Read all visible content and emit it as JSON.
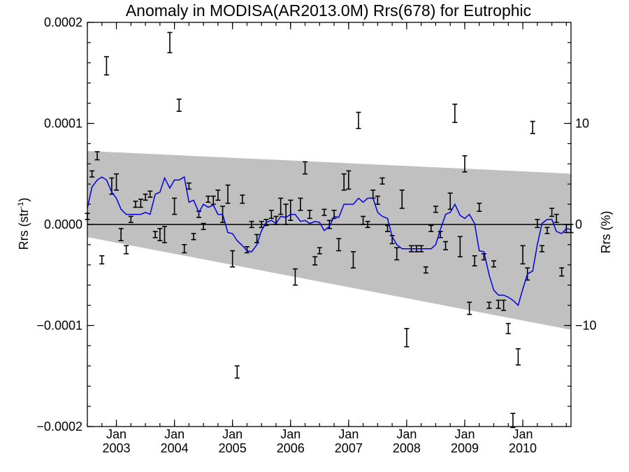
{
  "chart_data": {
    "type": "line",
    "title": "Anomaly in MODISA(AR2013.0M) Rrs(678) for Eutrophic",
    "ylabel_left": {
      "main": "Rrs (str",
      "sup": "-1",
      "tail": ")"
    },
    "ylabel_right": "Rrs (%)",
    "ylim": [
      -0.0002,
      0.0002
    ],
    "y2lim": [
      -20,
      20
    ],
    "xlim": [
      2002.5,
      2010.83
    ],
    "grid": false,
    "left_ticks": [
      {
        "value": 0.0002,
        "label": "0.0002"
      },
      {
        "value": 0.0001,
        "label": "0.0001"
      },
      {
        "value": 0.0,
        "label": "0.0000"
      },
      {
        "value": -0.0001,
        "label": "−0.0001"
      },
      {
        "value": -0.0002,
        "label": "−0.0002"
      }
    ],
    "right_ticks": [
      {
        "value": 10,
        "label": "10"
      },
      {
        "value": 0,
        "label": "0"
      },
      {
        "value": -10,
        "label": "−10"
      }
    ],
    "x_ticks": [
      {
        "value": 2003.0,
        "month": "Jan",
        "year": "2003"
      },
      {
        "value": 2004.0,
        "month": "Jan",
        "year": "2004"
      },
      {
        "value": 2005.0,
        "month": "Jan",
        "year": "2005"
      },
      {
        "value": 2006.0,
        "month": "Jan",
        "year": "2006"
      },
      {
        "value": 2007.0,
        "month": "Jan",
        "year": "2007"
      },
      {
        "value": 2008.0,
        "month": "Jan",
        "year": "2008"
      },
      {
        "value": 2009.0,
        "month": "Jan",
        "year": "2009"
      },
      {
        "value": 2010.0,
        "month": "Jan",
        "year": "2010"
      }
    ],
    "envelope": {
      "upper": [
        [
          2002.5,
          7.27e-05
        ],
        [
          2010.83,
          5.03e-05
        ]
      ],
      "lower": [
        [
          2002.5,
          -1.25e-05
        ],
        [
          2010.83,
          -0.0001042
        ]
      ],
      "color": "#c0c0c0"
    },
    "zero_line": 0,
    "smoothed_color": "#0000dd",
    "smoothed": [
      [
        2002.5,
        1.6e-05
      ],
      [
        2002.58,
        3.7e-05
      ],
      [
        2002.67,
        4.4e-05
      ],
      [
        2002.75,
        4.7e-05
      ],
      [
        2002.83,
        4.4e-05
      ],
      [
        2002.92,
        3.2e-05
      ],
      [
        2003.0,
        2.6e-05
      ],
      [
        2003.08,
        1.5e-05
      ],
      [
        2003.17,
        1e-05
      ],
      [
        2003.25,
        1e-05
      ],
      [
        2003.33,
        1e-05
      ],
      [
        2003.42,
        1e-05
      ],
      [
        2003.5,
        1.2e-05
      ],
      [
        2003.58,
        1e-05
      ],
      [
        2003.67,
        3e-05
      ],
      [
        2003.75,
        3.2e-05
      ],
      [
        2003.83,
        4.6e-05
      ],
      [
        2003.92,
        3.6e-05
      ],
      [
        2004.0,
        4.4e-05
      ],
      [
        2004.08,
        4.4e-05
      ],
      [
        2004.17,
        4.7e-05
      ],
      [
        2004.25,
        2.2e-05
      ],
      [
        2004.33,
        2.4e-05
      ],
      [
        2004.42,
        1.2e-05
      ],
      [
        2004.5,
        2e-05
      ],
      [
        2004.58,
        1.7e-05
      ],
      [
        2004.67,
        1.9e-05
      ],
      [
        2004.75,
        1e-05
      ],
      [
        2004.83,
        1e-05
      ],
      [
        2004.92,
        -8e-06
      ],
      [
        2005.0,
        -9e-06
      ],
      [
        2005.08,
        -1.6e-05
      ],
      [
        2005.17,
        -2.1e-05
      ],
      [
        2005.25,
        -2.6e-05
      ],
      [
        2005.33,
        -2.7e-05
      ],
      [
        2005.42,
        -2e-05
      ],
      [
        2005.5,
        -6e-06
      ],
      [
        2005.58,
        2e-06
      ],
      [
        2005.67,
        4e-06
      ],
      [
        2005.75,
        1e-06
      ],
      [
        2005.83,
        8e-06
      ],
      [
        2005.92,
        7e-06
      ],
      [
        2006.0,
        1e-05
      ],
      [
        2006.08,
        1e-05
      ],
      [
        2006.17,
        3e-06
      ],
      [
        2006.25,
        4e-06
      ],
      [
        2006.33,
        1e-06
      ],
      [
        2006.42,
        3e-06
      ],
      [
        2006.5,
        2e-06
      ],
      [
        2006.58,
        -6e-06
      ],
      [
        2006.67,
        -2e-06
      ],
      [
        2006.75,
        8e-06
      ],
      [
        2006.83,
        7e-06
      ],
      [
        2006.92,
        2e-05
      ],
      [
        2007.0,
        2e-05
      ],
      [
        2007.08,
        2e-05
      ],
      [
        2007.17,
        2.6e-05
      ],
      [
        2007.25,
        2.2e-05
      ],
      [
        2007.33,
        2.6e-05
      ],
      [
        2007.42,
        2.6e-05
      ],
      [
        2007.5,
        1.2e-05
      ],
      [
        2007.58,
        8e-06
      ],
      [
        2007.67,
        6e-06
      ],
      [
        2007.75,
        -1.2e-05
      ],
      [
        2007.83,
        -2e-05
      ],
      [
        2007.92,
        -2.4e-05
      ],
      [
        2008.0,
        -2.4e-05
      ],
      [
        2008.08,
        -2.4e-05
      ],
      [
        2008.17,
        -2.4e-05
      ],
      [
        2008.25,
        -2.4e-05
      ],
      [
        2008.33,
        -2.4e-05
      ],
      [
        2008.42,
        -2.4e-05
      ],
      [
        2008.5,
        -2e-05
      ],
      [
        2008.58,
        -5e-06
      ],
      [
        2008.67,
        1e-05
      ],
      [
        2008.75,
        1.2e-05
      ],
      [
        2008.83,
        2e-05
      ],
      [
        2008.92,
        9e-06
      ],
      [
        2009.0,
        6e-06
      ],
      [
        2009.08,
        1e-05
      ],
      [
        2009.17,
        1e-06
      ],
      [
        2009.25,
        -2.6e-05
      ],
      [
        2009.33,
        -2.7e-05
      ],
      [
        2009.42,
        -5e-05
      ],
      [
        2009.5,
        -6.5e-05
      ],
      [
        2009.58,
        -7e-05
      ],
      [
        2009.67,
        -7e-05
      ],
      [
        2009.75,
        -7.2e-05
      ],
      [
        2009.83,
        -7.5e-05
      ],
      [
        2009.92,
        -8e-05
      ],
      [
        2010.0,
        -6.4e-05
      ],
      [
        2010.08,
        -4.9e-05
      ],
      [
        2010.17,
        -4.6e-05
      ],
      [
        2010.25,
        -2e-05
      ],
      [
        2010.33,
        1e-06
      ],
      [
        2010.42,
        5e-06
      ],
      [
        2010.5,
        5e-06
      ],
      [
        2010.58,
        -7e-06
      ],
      [
        2010.67,
        -9e-06
      ],
      [
        2010.75,
        -4e-06
      ],
      [
        2010.83,
        -5e-06
      ]
    ],
    "anomalies": [
      [
        2002.5,
        8e-06,
        3e-06
      ],
      [
        2002.58,
        5e-05,
        3e-06
      ],
      [
        2002.67,
        6.8e-05,
        4e-06
      ],
      [
        2002.75,
        -3.5e-05,
        4e-06
      ],
      [
        2002.83,
        0.000157,
        9e-06
      ],
      [
        2002.92,
        3.8e-05,
        8e-06
      ],
      [
        2003.0,
        4.2e-05,
        8e-06
      ],
      [
        2003.08,
        -1e-05,
        6e-06
      ],
      [
        2003.17,
        -2.5e-05,
        4e-06
      ],
      [
        2003.25,
        5e-06,
        3e-06
      ],
      [
        2003.33,
        2e-05,
        3e-06
      ],
      [
        2003.42,
        2.1e-05,
        4e-06
      ],
      [
        2003.5,
        2.7e-05,
        3e-06
      ],
      [
        2003.58,
        3e-05,
        3e-06
      ],
      [
        2003.67,
        -1e-05,
        3e-06
      ],
      [
        2003.75,
        -1e-05,
        6e-06
      ],
      [
        2003.83,
        -1e-05,
        8e-06
      ],
      [
        2003.92,
        0.00018,
        1e-05
      ],
      [
        2004.0,
        1.8e-05,
        8e-06
      ],
      [
        2004.08,
        0.000118,
        6e-06
      ],
      [
        2004.17,
        -2.4e-05,
        4e-06
      ],
      [
        2004.25,
        3.8e-05,
        3e-06
      ],
      [
        2004.33,
        -1.2e-05,
        3e-06
      ],
      [
        2004.42,
        1e-05,
        3e-06
      ],
      [
        2004.5,
        -2e-06,
        3e-06
      ],
      [
        2004.58,
        2.5e-05,
        3e-06
      ],
      [
        2004.67,
        2.4e-05,
        4e-06
      ],
      [
        2004.75,
        2.9e-05,
        5e-06
      ],
      [
        2004.83,
        1e-05,
        8e-06
      ],
      [
        2004.92,
        3e-05,
        9e-06
      ],
      [
        2005.0,
        -3.4e-05,
        8e-06
      ],
      [
        2005.08,
        -0.000146,
        6e-06
      ],
      [
        2005.17,
        2.5e-05,
        4e-06
      ],
      [
        2005.25,
        -2.5e-05,
        3e-06
      ],
      [
        2005.33,
        0.0,
        3e-06
      ],
      [
        2005.42,
        -1.4e-05,
        4e-06
      ],
      [
        2005.5,
        0.0,
        3e-06
      ],
      [
        2005.58,
        2e-06,
        3e-06
      ],
      [
        2005.67,
        1e-05,
        4e-06
      ],
      [
        2005.75,
        4e-06,
        4e-06
      ],
      [
        2005.83,
        1.8e-05,
        8e-06
      ],
      [
        2005.92,
        1e-05,
        1e-05
      ],
      [
        2006.0,
        1.4e-05,
        1e-05
      ],
      [
        2006.08,
        -5.2e-05,
        8e-06
      ],
      [
        2006.17,
        2e-05,
        6e-06
      ],
      [
        2006.25,
        5.6e-05,
        6e-06
      ],
      [
        2006.33,
        1e-05,
        4e-06
      ],
      [
        2006.42,
        -3.6e-05,
        4e-06
      ],
      [
        2006.5,
        -2.6e-05,
        3e-06
      ],
      [
        2006.58,
        1.2e-05,
        3e-06
      ],
      [
        2006.67,
        0.0,
        4e-06
      ],
      [
        2006.75,
        1e-05,
        4e-06
      ],
      [
        2006.83,
        -2e-05,
        6e-06
      ],
      [
        2006.92,
        4.2e-05,
        8e-06
      ],
      [
        2007.0,
        4.4e-05,
        9e-06
      ],
      [
        2007.08,
        -3.5e-05,
        8e-06
      ],
      [
        2007.17,
        0.000103,
        8e-06
      ],
      [
        2007.25,
        4e-06,
        4e-06
      ],
      [
        2007.33,
        0.0,
        3e-06
      ],
      [
        2007.42,
        3e-05,
        4e-06
      ],
      [
        2007.5,
        2.4e-05,
        4e-06
      ],
      [
        2007.58,
        4.3e-05,
        3e-06
      ],
      [
        2007.67,
        -4e-06,
        3e-06
      ],
      [
        2007.75,
        -1.5e-05,
        4e-06
      ],
      [
        2007.83,
        -2.9e-05,
        6e-06
      ],
      [
        2007.92,
        2.5e-05,
        9e-06
      ],
      [
        2008.0,
        -0.000112,
        9e-06
      ],
      [
        2008.08,
        -2.4e-05,
        3e-06
      ],
      [
        2008.17,
        -2.4e-05,
        3e-06
      ],
      [
        2008.25,
        -2.4e-05,
        3e-06
      ],
      [
        2008.33,
        -4.5e-05,
        3e-06
      ],
      [
        2008.42,
        -4e-06,
        3e-06
      ],
      [
        2008.5,
        1.5e-05,
        3e-06
      ],
      [
        2008.58,
        -1e-05,
        3e-06
      ],
      [
        2008.67,
        -2.1e-05,
        4e-06
      ],
      [
        2008.75,
        2.3e-05,
        8e-06
      ],
      [
        2008.83,
        0.00011,
        9e-06
      ],
      [
        2008.92,
        -2.2e-05,
        1e-05
      ],
      [
        2009.0,
        6e-05,
        8e-06
      ],
      [
        2009.08,
        -8.3e-05,
        6e-06
      ],
      [
        2009.17,
        -3.6e-05,
        5e-06
      ],
      [
        2009.25,
        1.7e-05,
        4e-06
      ],
      [
        2009.33,
        -3.2e-05,
        3e-06
      ],
      [
        2009.42,
        -8e-05,
        3e-06
      ],
      [
        2009.5,
        -3.9e-05,
        3e-06
      ],
      [
        2009.58,
        -7.9e-05,
        4e-06
      ],
      [
        2009.67,
        -8e-05,
        5e-06
      ],
      [
        2009.75,
        -0.000103,
        5e-06
      ],
      [
        2009.83,
        -0.000194,
        7e-06
      ],
      [
        2009.92,
        -0.000131,
        8e-06
      ],
      [
        2010.0,
        -3e-05,
        9e-06
      ],
      [
        2010.08,
        -4.9e-05,
        6e-06
      ],
      [
        2010.17,
        9.6e-05,
        6e-06
      ],
      [
        2010.25,
        1e-06,
        4e-06
      ],
      [
        2010.33,
        -2.4e-05,
        3e-06
      ],
      [
        2010.42,
        -6e-06,
        3e-06
      ],
      [
        2010.5,
        1.2e-05,
        4e-06
      ],
      [
        2010.58,
        6e-06,
        4e-06
      ],
      [
        2010.67,
        -4.7e-05,
        4e-06
      ],
      [
        2010.75,
        -4e-06,
        4e-06
      ],
      [
        2010.83,
        -4e-06,
        4e-06
      ]
    ]
  }
}
